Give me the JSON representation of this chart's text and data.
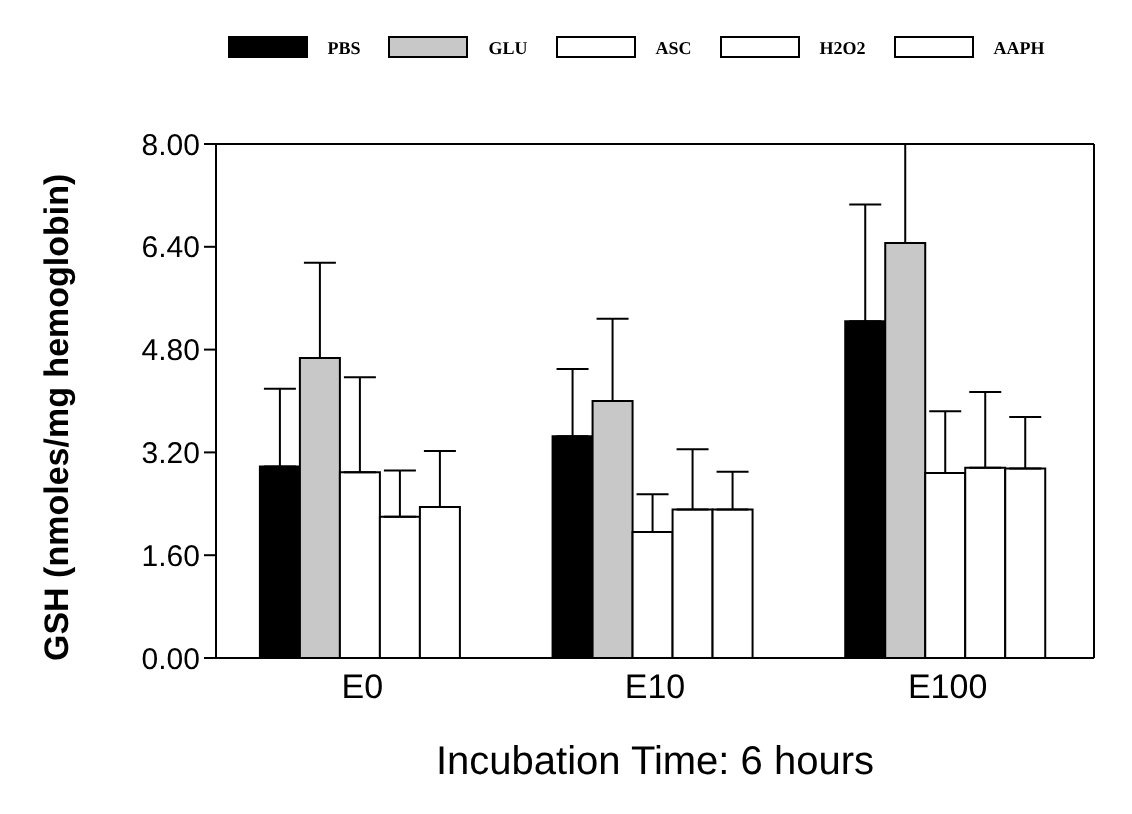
{
  "chart_data": {
    "type": "bar",
    "xlabel": "Incubation Time: 6 hours",
    "ylabel": "GSH (nmoles/mg hemoglobin)",
    "categories": [
      "E0",
      "E10",
      "E100"
    ],
    "series": [
      {
        "name": "PBS",
        "color": "#000000",
        "values": [
          2.98,
          3.45,
          5.24
        ],
        "errors": [
          1.21,
          1.05,
          1.82
        ]
      },
      {
        "name": "GLU",
        "color": "#c8c8c8",
        "values": [
          4.67,
          4.0,
          6.46
        ],
        "errors": [
          1.48,
          1.28,
          1.54
        ]
      },
      {
        "name": "ASC",
        "color": "#ffffff",
        "values": [
          2.89,
          1.96,
          2.88
        ],
        "errors": [
          1.48,
          0.59,
          0.96
        ]
      },
      {
        "name": "H2O2",
        "color": "#ffffff",
        "values": [
          2.2,
          2.31,
          2.96
        ],
        "errors": [
          0.72,
          0.94,
          1.18
        ]
      },
      {
        "name": "AAPH",
        "color": "#ffffff",
        "values": [
          2.35,
          2.31,
          2.95
        ],
        "errors": [
          0.87,
          0.59,
          0.8
        ]
      }
    ],
    "ylim": [
      0,
      8
    ],
    "yticks": [
      {
        "value": 0,
        "label": "0.00"
      },
      {
        "value": 1.6,
        "label": "1.60"
      },
      {
        "value": 3.2,
        "label": "3.20"
      },
      {
        "value": 4.8,
        "label": "4.80"
      },
      {
        "value": 6.4,
        "label": "6.40"
      },
      {
        "value": 8,
        "label": "8.00"
      }
    ],
    "grid": false,
    "legend": "top"
  }
}
